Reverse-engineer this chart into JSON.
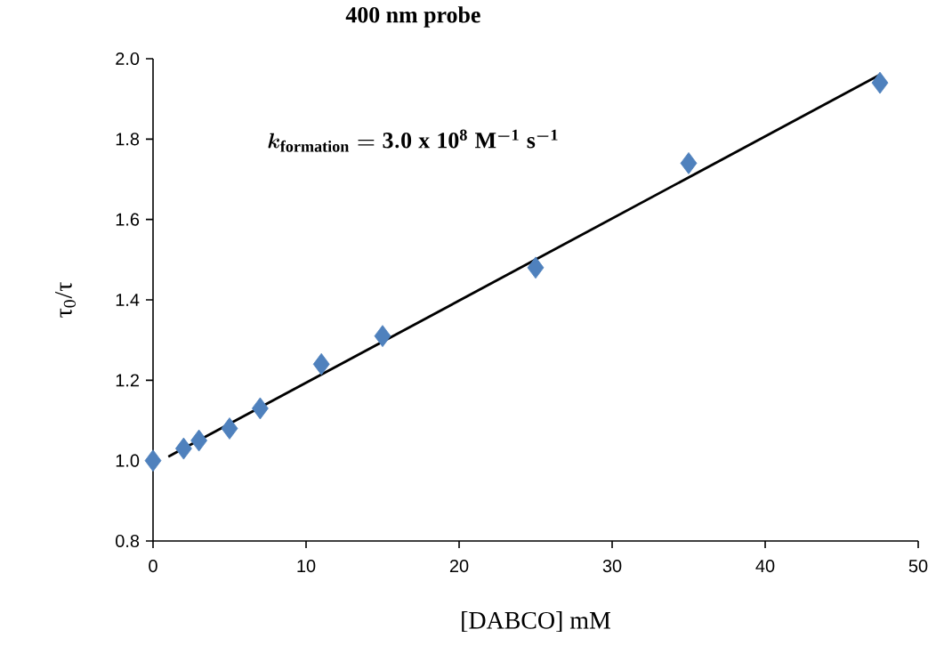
{
  "chart_data": {
    "type": "scatter",
    "title": "400 nm probe",
    "xlabel": "[DABCO] mM",
    "ylabel": "τ$_{0}$/τ",
    "annotations": [
      "\\boldsymbol{k}_{\\mathbf{formation}}\\mathbf{{}= 3.0\\ x\\ 10^{8}\\ M^{-1}\\ s^{-1}}"
    ],
    "series": [
      {
        "color": "#4f81bd",
        "marker": "diamond",
        "x": [
          0,
          2,
          3,
          5,
          7,
          11,
          15,
          25,
          35,
          47.5
        ],
        "values": [
          1.0,
          1.03,
          1.05,
          1.08,
          1.13,
          1.24,
          1.31,
          1.48,
          1.74,
          1.94
        ]
      },
      {
        "type": "line",
        "color": "#000000",
        "marker": "none",
        "line_style": "solid",
        "x": [
          1,
          47.5
        ],
        "values": [
          1.01,
          1.96
        ]
      }
    ],
    "xlim": [
      0,
      50
    ],
    "ylim": [
      0.8,
      2.0
    ],
    "xticks": [
      0,
      10,
      20,
      30,
      40,
      50
    ],
    "yticks": [
      {
        "value": 0.8,
        "label": "0.8"
      },
      {
        "value": 1.0,
        "label": "1.0"
      },
      {
        "value": 1.2,
        "label": "1.2"
      },
      {
        "value": 1.4,
        "label": "1.4"
      },
      {
        "value": 1.6,
        "label": "1.6"
      },
      {
        "value": 1.8,
        "label": "1.8"
      },
      {
        "value": 2.0,
        "label": "2.0"
      }
    ],
    "grid": false
  }
}
